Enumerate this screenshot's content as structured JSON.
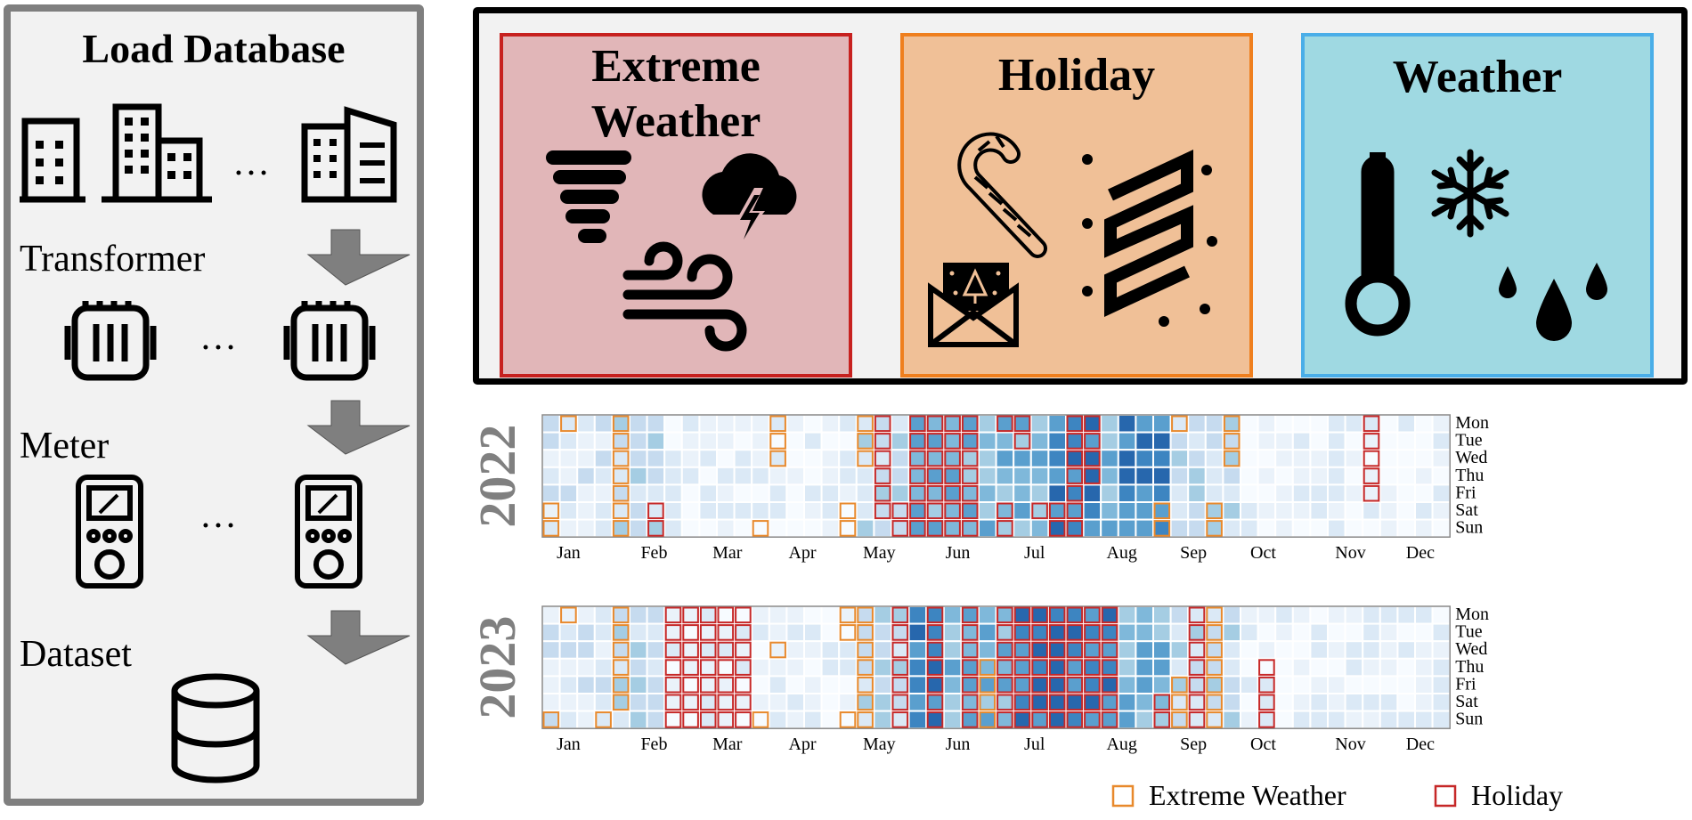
{
  "left_panel": {
    "title": "Load Database",
    "stages": [
      {
        "label": "Transformer"
      },
      {
        "label": "Meter"
      },
      {
        "label": "Dataset"
      }
    ],
    "ellipsis": "…",
    "colors": {
      "arrow": "#7f7f7f",
      "border": "#7f7f7f"
    }
  },
  "categories": {
    "extreme_weather": {
      "title_line1": "Extreme",
      "title_line2": "Weather",
      "icons": [
        "tornado-icon",
        "thunderstorm-icon",
        "wind-icon"
      ]
    },
    "holiday": {
      "title": "Holiday",
      "icons": [
        "candy-cane-icon",
        "greeting-card-icon",
        "ribbon-icon"
      ]
    },
    "weather": {
      "title": "Weather",
      "icons": [
        "thermometer-icon",
        "snowflake-icon",
        "raindrops-icon"
      ]
    }
  },
  "chart_data": {
    "type": "heatmap",
    "years": [
      "2022",
      "2023"
    ],
    "weekday_labels": [
      "Mon",
      "Tue",
      "Wed",
      "Thu",
      "Fri",
      "Sat",
      "Sun"
    ],
    "month_labels": [
      "Jan",
      "Feb",
      "Mar",
      "Apr",
      "May",
      "Jun",
      "Jul",
      "Aug",
      "Sep",
      "Oct",
      "Nov",
      "Dec"
    ],
    "colormap": "Blues",
    "legend": [
      {
        "label": "Extreme Weather",
        "color": "#e8892c"
      },
      {
        "label": "Holiday",
        "color": "#c62828"
      }
    ]
  }
}
